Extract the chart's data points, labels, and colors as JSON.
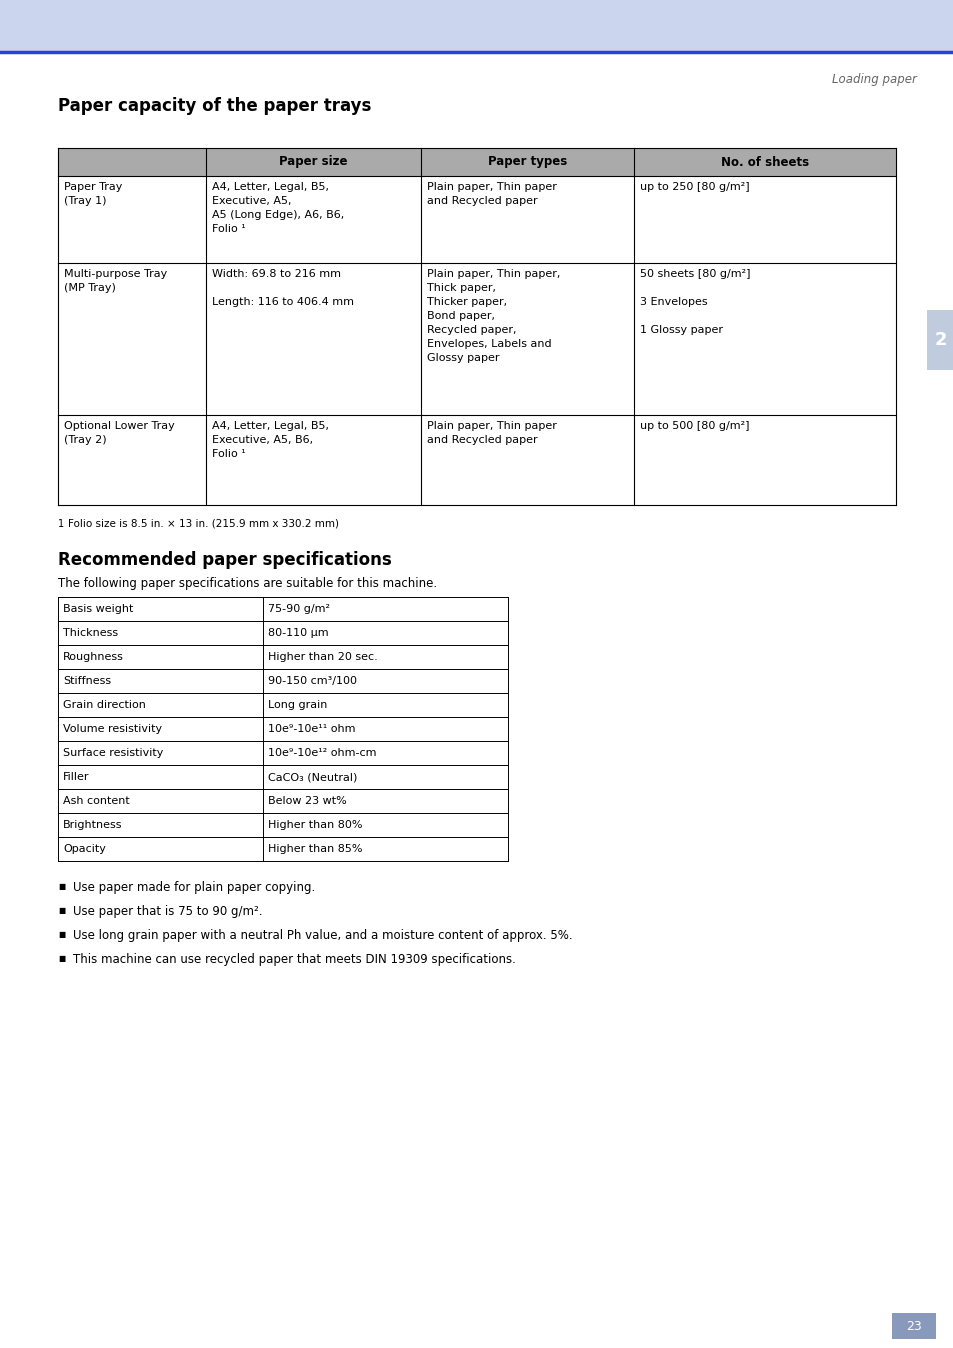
{
  "page_bg": "#ffffff",
  "header_bg": "#ccd5ee",
  "header_line_color": "#2244dd",
  "header_text": "Loading paper",
  "tab_bg": "#c0ccdd",
  "tab_label": "2",
  "section1_title": "Paper capacity of the paper trays",
  "table1_header_bg": "#aaaaaa",
  "table1_headers": [
    "",
    "Paper size",
    "Paper types",
    "No. of sheets"
  ],
  "table1_rows": [
    {
      "col1": "Paper Tray\n(Tray 1)",
      "col2": "A4, Letter, Legal, B5,\nExecutive, A5,\nA5 (Long Edge), A6, B6,\nFolio ¹",
      "col3": "Plain paper, Thin paper\nand Recycled paper",
      "col4": "up to 250 [80 g/m²]"
    },
    {
      "col1": "Multi-purpose Tray\n(MP Tray)",
      "col2": "Width: 69.8 to 216 mm\n\nLength: 116 to 406.4 mm",
      "col3": "Plain paper, Thin paper,\nThick paper,\nThicker paper,\nBond paper,\nRecycled paper,\nEnvelopes, Labels and\nGlossy paper",
      "col4": "50 sheets [80 g/m²]\n\n3 Envelopes\n\n1 Glossy paper"
    },
    {
      "col1": "Optional Lower Tray\n(Tray 2)",
      "col2": "A4, Letter, Legal, B5,\nExecutive, A5, B6,\nFolio ¹",
      "col3": "Plain paper, Thin paper\nand Recycled paper",
      "col4": "up to 500 [80 g/m²]"
    }
  ],
  "footnote_num": "1",
  "footnote_text": "Folio size is 8.5 in. × 13 in. (215.9 mm x 330.2 mm)",
  "section2_title": "Recommended paper specifications",
  "section2_intro": "The following paper specifications are suitable for this machine.",
  "table2_rows": [
    [
      "Basis weight",
      "75-90 g/m²"
    ],
    [
      "Thickness",
      "80-110 μm"
    ],
    [
      "Roughness",
      "Higher than 20 sec."
    ],
    [
      "Stiffness",
      "90-150 cm³/100"
    ],
    [
      "Grain direction",
      "Long grain"
    ],
    [
      "Volume resistivity",
      "10e⁹-10e¹¹ ohm"
    ],
    [
      "Surface resistivity",
      "10e⁹-10e¹² ohm-cm"
    ],
    [
      "Filler",
      "CaCO₃ (Neutral)"
    ],
    [
      "Ash content",
      "Below 23 wt%"
    ],
    [
      "Brightness",
      "Higher than 80%"
    ],
    [
      "Opacity",
      "Higher than 85%"
    ]
  ],
  "bullets": [
    "Use paper made for plain paper copying.",
    "Use paper that is 75 to 90 g/m².",
    "Use long grain paper with a neutral Ph value, and a moisture content of approx. 5%.",
    "This machine can use recycled paper that meets DIN 19309 specifications."
  ],
  "page_number": "23",
  "page_num_bg": "#8899bb"
}
